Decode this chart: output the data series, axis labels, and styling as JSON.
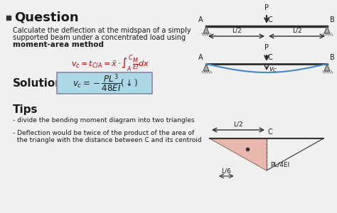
{
  "bg_color": "#f0f0f0",
  "title_text": "Question",
  "question_text1": "Calculate the deflection at the midspan of a simply",
  "question_text2": "supported beam under a concentrated load using",
  "question_text3": "moment-area method",
  "solution_label": "Solution",
  "tips_label": "Tips",
  "tip1": "- divide the bending moment diagram into two triangles",
  "tip2": "- Deflection would be twice of the product of the area of",
  "tip3": "  the triangle with the distance between C and its centroid",
  "box_color": "#add8e6",
  "triangle_fill": "#f4a460",
  "beam_color": "#2c2c2c",
  "arrow_color": "#2c2c2c",
  "text_color": "#1a1a1a",
  "red_formula_color": "#cc0000"
}
